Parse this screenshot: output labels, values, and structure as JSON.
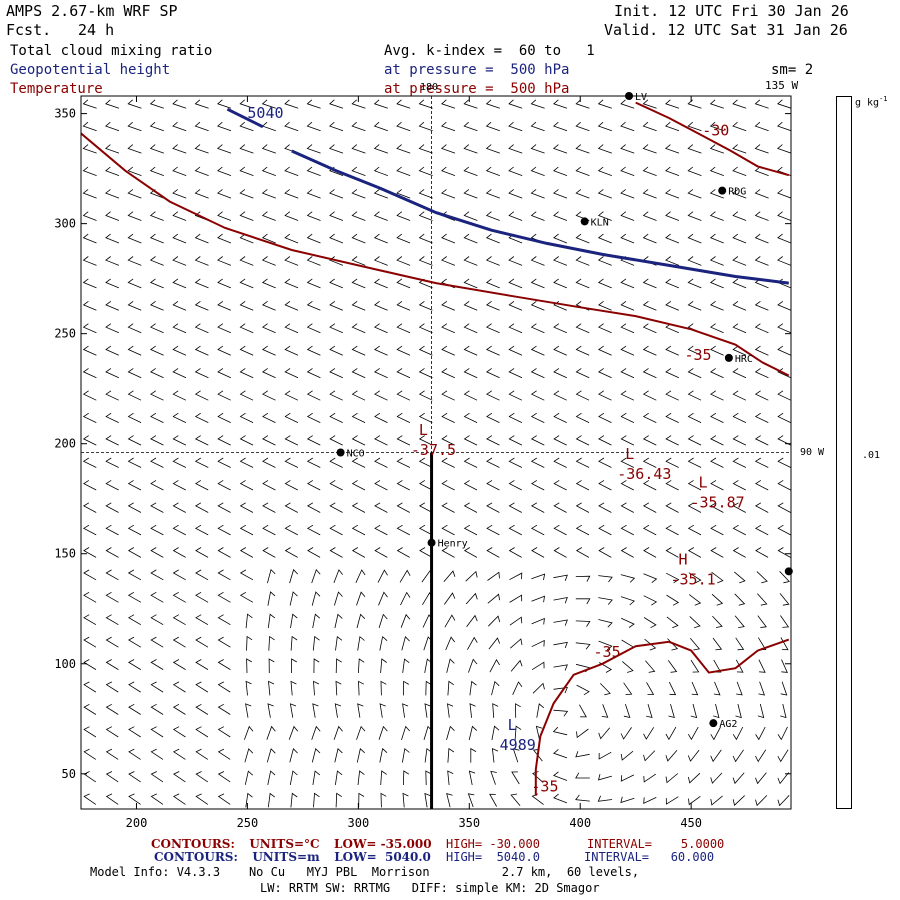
{
  "header": {
    "model": "AMPS 2.67-km WRF SP",
    "fcst_label": "Fcst.",
    "fcst_value": "24 h",
    "init": "Init. 12 UTC Fri 30 Jan 26",
    "valid": "Valid. 12 UTC Sat 31 Jan 26",
    "field1": "Total cloud mixing ratio",
    "field2": "Geopotential height",
    "field3": "Temperature",
    "avg": "Avg. k-index =  60 to   1",
    "pressure1": "at pressure =  500 hPa",
    "pressure2": "at pressure =  500 hPa",
    "sm": "sm= 2",
    "lon_135": "135 W",
    "lon_180": "180",
    "lon_90": "90 W",
    "units": "g kg",
    "units_exp": "-1",
    "cbar_value": ".01"
  },
  "footer": {
    "row1": {
      "label": "CONTOURS:",
      "units": "UNITS=°C",
      "low": "LOW= -35.000",
      "high": "HIGH= -30.000",
      "interval": "INTERVAL=    5.0000"
    },
    "row2": {
      "label": "CONTOURS:",
      "units": "UNITS=m",
      "low": "LOW=  5040.0",
      "high": "HIGH=  5040.0",
      "interval": "INTERVAL=   60.000"
    },
    "model_info": "Model Info: V4.3.3    No Cu   MYJ PBL  Morrison          2.7 km,  60 levels,",
    "model_info2": "LW: RRTM SW: RRTMG   DIFF: simple KM: 2D Smagor"
  },
  "colors": {
    "height": "#1a237e",
    "temp": "#8b0000",
    "axis": "#000000"
  },
  "chart_data": {
    "type": "line",
    "title": "Total cloud mixing ratio / Geopotential height / Temperature",
    "xlabel": "",
    "ylabel": "",
    "xlim": [
      175,
      495
    ],
    "ylim": [
      34,
      358
    ],
    "xticks": [
      200,
      250,
      300,
      350,
      400,
      450
    ],
    "yticks": [
      50,
      100,
      150,
      200,
      250,
      300,
      350
    ],
    "height_contours": [
      {
        "label": "5040",
        "points": [
          [
            241,
            352
          ],
          [
            257,
            344
          ]
        ]
      },
      {
        "label": "",
        "points": [
          [
            270,
            333
          ],
          [
            290,
            324
          ],
          [
            310,
            316
          ],
          [
            335,
            305
          ],
          [
            360,
            297
          ],
          [
            385,
            291
          ],
          [
            410,
            286
          ],
          [
            440,
            281
          ],
          [
            470,
            276
          ],
          [
            494,
            273
          ]
        ]
      }
    ],
    "temp_contours": [
      {
        "label": "-30",
        "points": [
          [
            425,
            355
          ],
          [
            440,
            348
          ],
          [
            455,
            340
          ],
          [
            468,
            333
          ],
          [
            480,
            326
          ],
          [
            494,
            322
          ]
        ]
      },
      {
        "label": "",
        "points": [
          [
            175,
            341
          ],
          [
            195,
            324
          ],
          [
            215,
            310
          ],
          [
            240,
            298
          ],
          [
            270,
            288
          ],
          [
            300,
            281
          ],
          [
            335,
            273
          ],
          [
            370,
            267
          ],
          [
            400,
            262
          ],
          [
            425,
            258
          ],
          [
            450,
            252
          ],
          [
            470,
            245
          ],
          [
            482,
            237
          ],
          [
            494,
            231
          ]
        ]
      },
      {
        "label": "-35",
        "points": [
          [
            494,
            111
          ],
          [
            480,
            106
          ],
          [
            470,
            98
          ],
          [
            458,
            96
          ],
          [
            450,
            106
          ],
          [
            440,
            110
          ],
          [
            425,
            108
          ],
          [
            410,
            100
          ],
          [
            397,
            95
          ],
          [
            388,
            82
          ],
          [
            382,
            67
          ],
          [
            380,
            52
          ],
          [
            380,
            40
          ]
        ]
      }
    ],
    "annotations": [
      {
        "type": "L",
        "value": "-37.5",
        "x": 330,
        "y": 204
      },
      {
        "type": "L",
        "value": "-36.43",
        "x": 423,
        "y": 193
      },
      {
        "type": "L",
        "value": "-35.87",
        "x": 456,
        "y": 180
      },
      {
        "type": "H",
        "value": "-35.1",
        "x": 447,
        "y": 145
      },
      {
        "type": "L",
        "value": "4989",
        "x": 370,
        "y": 70
      }
    ],
    "contour_labels": [
      {
        "text": "5040",
        "x": 250,
        "y": 348,
        "series": "height"
      },
      {
        "text": "-30",
        "x": 455,
        "y": 340,
        "series": "temp"
      },
      {
        "text": "-35",
        "x": 447,
        "y": 238,
        "series": "temp"
      },
      {
        "text": "-35",
        "x": 406,
        "y": 103,
        "series": "temp"
      },
      {
        "text": "-35",
        "x": 378,
        "y": 42,
        "series": "temp"
      }
    ],
    "stations": [
      {
        "name": "LV",
        "x": 422,
        "y": 358
      },
      {
        "name": "RDG",
        "x": 464,
        "y": 315
      },
      {
        "name": "KLN",
        "x": 402,
        "y": 301
      },
      {
        "name": "HRC",
        "x": 467,
        "y": 239
      },
      {
        "name": "NCO",
        "x": 292,
        "y": 196
      },
      {
        "name": "Henry",
        "x": 333,
        "y": 155
      },
      {
        "name": "",
        "x": 494,
        "y": 142
      },
      {
        "name": "AG2",
        "x": 460,
        "y": 73
      }
    ],
    "cross_section": {
      "x": 333,
      "y_from": 34,
      "y_to": 196
    },
    "guide_lines": {
      "x": 333,
      "y": 196
    }
  }
}
